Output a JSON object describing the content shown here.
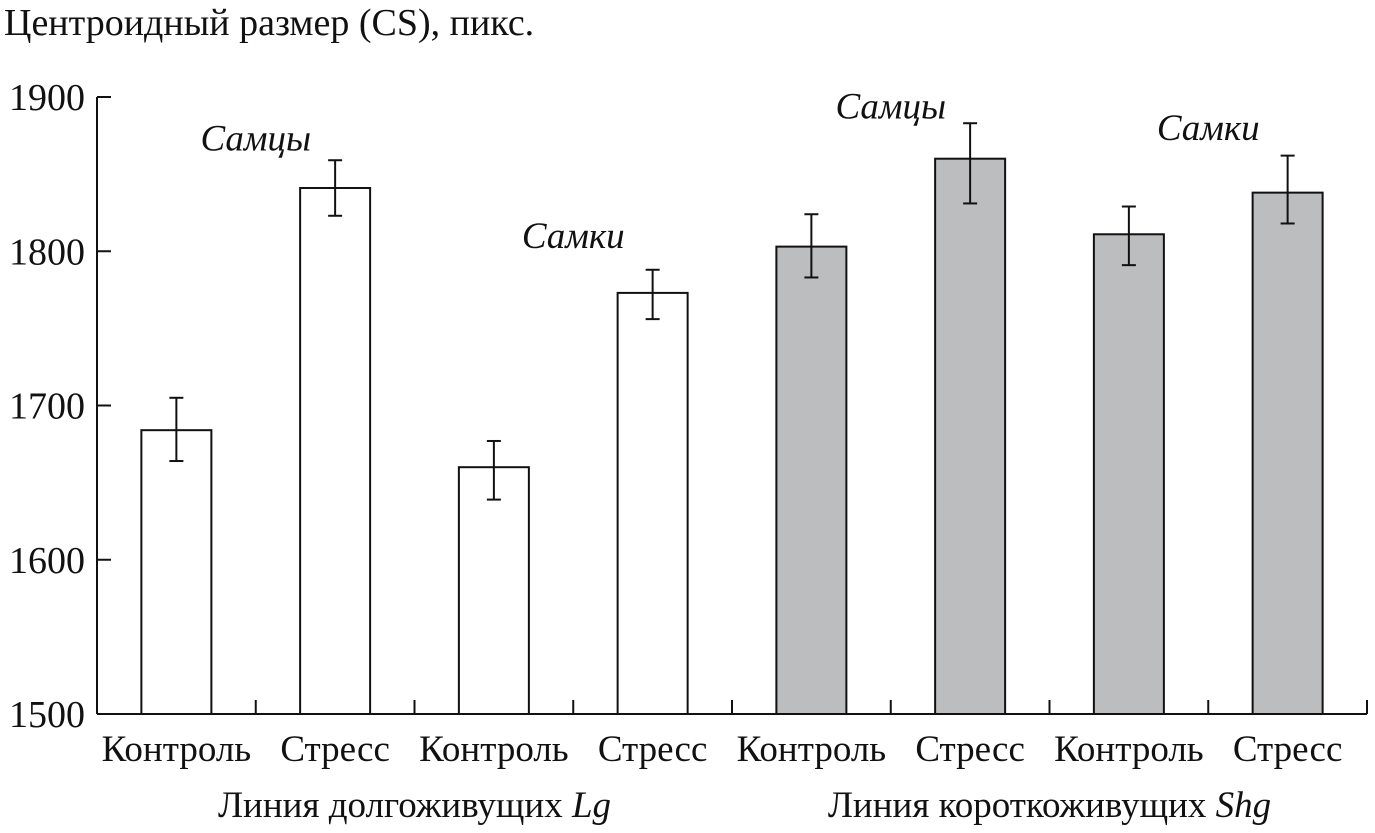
{
  "chart_data": {
    "type": "bar",
    "title": "Центроидный размер (CS), пикс.",
    "ylabel": "",
    "ylim": [
      1500,
      1900
    ],
    "yticks": [
      1500,
      1600,
      1700,
      1800,
      1900
    ],
    "grid": false,
    "legend": "none",
    "categories": [
      "Контроль",
      "Стресс",
      "Контроль",
      "Стресс",
      "Контроль",
      "Стресс",
      "Контроль",
      "Стресс"
    ],
    "values": [
      1684,
      1841,
      1660,
      1773,
      1803,
      1860,
      1811,
      1838
    ],
    "error_low": [
      1664,
      1823,
      1639,
      1756,
      1783,
      1831,
      1791,
      1818
    ],
    "error_high": [
      1705,
      1859,
      1677,
      1788,
      1824,
      1883,
      1829,
      1862
    ],
    "bar_fills": [
      "#ffffff",
      "#ffffff",
      "#ffffff",
      "#ffffff",
      "#bcbdbf",
      "#bcbdbf",
      "#bcbdbf",
      "#bcbdbf"
    ],
    "groups": [
      {
        "prefix": "Линия долгоживущих ",
        "italic": "Lg",
        "span": [
          0,
          3
        ]
      },
      {
        "prefix": "Линия короткоживущих ",
        "italic": "Shg",
        "span": [
          4,
          7
        ]
      }
    ],
    "annotations": [
      {
        "text": "Самцы",
        "above_bars": [
          0,
          1
        ],
        "y": 1873
      },
      {
        "text": "Самки",
        "above_bars": [
          2,
          3
        ],
        "y": 1810
      },
      {
        "text": "Самцы",
        "above_bars": [
          4,
          5
        ],
        "y": 1894
      },
      {
        "text": "Самки",
        "above_bars": [
          6,
          7
        ],
        "y": 1880
      }
    ]
  }
}
